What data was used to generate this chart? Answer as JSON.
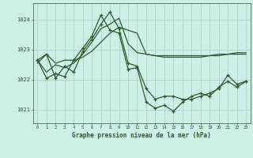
{
  "title": "Graphe pression niveau de la mer (hPa)",
  "bg_color": "#ceeee8",
  "grid_color": "#b0d8cc",
  "line_color": "#2a5e2a",
  "xlim": [
    -0.5,
    23.5
  ],
  "ylim": [
    1020.55,
    1024.55
  ],
  "yticks": [
    1021,
    1022,
    1023,
    1024
  ],
  "series": [
    [
      1022.55,
      1022.85,
      1022.55,
      1022.65,
      1022.65,
      1022.75,
      1022.95,
      1023.25,
      1023.55,
      1023.75,
      1023.65,
      1023.55,
      1022.85,
      1022.8,
      1022.75,
      1022.75,
      1022.75,
      1022.75,
      1022.75,
      1022.8,
      1022.85,
      1022.85,
      1022.9,
      1022.9
    ],
    [
      1022.65,
      1022.25,
      1022.5,
      1022.4,
      1022.55,
      1022.85,
      1023.25,
      1023.7,
      1023.85,
      1024.05,
      1023.2,
      1022.9,
      1022.85,
      1022.8,
      1022.8,
      1022.8,
      1022.8,
      1022.8,
      1022.8,
      1022.8,
      1022.8,
      1022.85,
      1022.85,
      1022.85
    ],
    [
      1022.65,
      1022.85,
      1022.05,
      1022.45,
      1022.25,
      1022.95,
      1023.35,
      1023.85,
      1024.25,
      1023.7,
      1022.55,
      1022.45,
      1021.7,
      1021.35,
      1021.45,
      1021.45,
      1021.35,
      1021.35,
      1021.45,
      1021.55,
      1021.7,
      1022.15,
      1021.85,
      1021.95
    ],
    [
      1022.65,
      1022.05,
      1022.2,
      1022.1,
      1022.65,
      1023.05,
      1023.45,
      1024.15,
      1023.65,
      1023.55,
      1022.35,
      1022.4,
      1021.25,
      1021.05,
      1021.15,
      1020.95,
      1021.25,
      1021.45,
      1021.55,
      1021.45,
      1021.75,
      1021.95,
      1021.75,
      1021.95
    ]
  ]
}
